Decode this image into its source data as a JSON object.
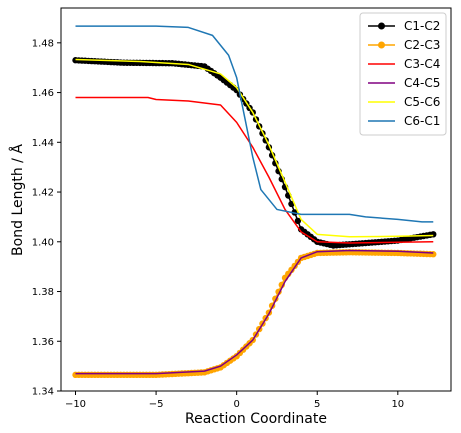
{
  "chart_data": {
    "type": "line",
    "xlabel": "Reaction Coordinate",
    "ylabel": "Bond Length / Å",
    "xlim": [
      -10.9,
      13.3
    ],
    "ylim": [
      1.34,
      1.494
    ],
    "x_ticks": [
      -10,
      -5,
      0,
      5,
      10
    ],
    "x_tick_labels": [
      "−10",
      "−5",
      "0",
      "5",
      "10"
    ],
    "y_ticks": [
      1.34,
      1.36,
      1.38,
      1.4,
      1.42,
      1.44,
      1.46,
      1.48
    ],
    "y_tick_labels": [
      "1.34",
      "1.36",
      "1.38",
      "1.40",
      "1.42",
      "1.44",
      "1.46",
      "1.48"
    ],
    "grid": false,
    "legend_position": "top-right",
    "series": [
      {
        "name": "C1-C2",
        "color": "#000000",
        "marker": "circle",
        "points": [
          [
            -10,
            1.473
          ],
          [
            -7,
            1.472
          ],
          [
            -4,
            1.4718
          ],
          [
            -2,
            1.4705
          ],
          [
            -1,
            1.466
          ],
          [
            0,
            1.461
          ],
          [
            1,
            1.452
          ],
          [
            2,
            1.438
          ],
          [
            3,
            1.422
          ],
          [
            4,
            1.405
          ],
          [
            5,
            1.4
          ],
          [
            6,
            1.3985
          ],
          [
            8,
            1.3995
          ],
          [
            10,
            1.4005
          ],
          [
            12.2,
            1.403
          ]
        ]
      },
      {
        "name": "C2-C3",
        "color": "#FFA500",
        "marker": "circle",
        "points": [
          [
            -10,
            1.3465
          ],
          [
            -5,
            1.3465
          ],
          [
            -2,
            1.3475
          ],
          [
            -1,
            1.3495
          ],
          [
            0,
            1.354
          ],
          [
            1,
            1.3605
          ],
          [
            2,
            1.3715
          ],
          [
            3,
            1.3855
          ],
          [
            4,
            1.3935
          ],
          [
            5,
            1.3955
          ],
          [
            7,
            1.3958
          ],
          [
            10,
            1.3955
          ],
          [
            12.2,
            1.395
          ]
        ]
      },
      {
        "name": "C3-C4",
        "color": "#FF0000",
        "marker": "none",
        "points": [
          [
            -10,
            1.458
          ],
          [
            -5.5,
            1.458
          ],
          [
            -5,
            1.4572
          ],
          [
            -3,
            1.4566
          ],
          [
            -1,
            1.455
          ],
          [
            0,
            1.448
          ],
          [
            1,
            1.438
          ],
          [
            2,
            1.426
          ],
          [
            3,
            1.413
          ],
          [
            4,
            1.404
          ],
          [
            5,
            1.4
          ],
          [
            7,
            1.3995
          ],
          [
            10,
            1.3998
          ],
          [
            12.2,
            1.4
          ]
        ]
      },
      {
        "name": "C4-C5",
        "color": "#800080",
        "marker": "none",
        "points": [
          [
            -10,
            1.347
          ],
          [
            -5,
            1.347
          ],
          [
            -2,
            1.348
          ],
          [
            -1,
            1.35
          ],
          [
            0,
            1.3545
          ],
          [
            1,
            1.3605
          ],
          [
            2,
            1.371
          ],
          [
            3,
            1.384
          ],
          [
            4,
            1.3935
          ],
          [
            5,
            1.396
          ],
          [
            7,
            1.3965
          ],
          [
            10,
            1.3962
          ],
          [
            12.2,
            1.3955
          ]
        ]
      },
      {
        "name": "C5-C6",
        "color": "#FFFF00",
        "marker": "none",
        "points": [
          [
            -10,
            1.4733
          ],
          [
            -6,
            1.4725
          ],
          [
            -3,
            1.4713
          ],
          [
            -1,
            1.4675
          ],
          [
            0,
            1.462
          ],
          [
            1,
            1.452
          ],
          [
            2,
            1.439
          ],
          [
            3,
            1.424
          ],
          [
            4,
            1.409
          ],
          [
            5,
            1.403
          ],
          [
            7,
            1.402
          ],
          [
            10,
            1.4022
          ],
          [
            12.2,
            1.4025
          ]
        ]
      },
      {
        "name": "C6-C1",
        "color": "#1F77B4",
        "marker": "none",
        "points": [
          [
            -10,
            1.4867
          ],
          [
            -5,
            1.4867
          ],
          [
            -3,
            1.4862
          ],
          [
            -1.5,
            1.483
          ],
          [
            -0.5,
            1.475
          ],
          [
            0,
            1.466
          ],
          [
            0.5,
            1.45
          ],
          [
            1,
            1.434
          ],
          [
            1.5,
            1.421
          ],
          [
            2.5,
            1.413
          ],
          [
            4,
            1.411
          ],
          [
            7,
            1.411
          ],
          [
            8,
            1.41
          ],
          [
            10,
            1.409
          ],
          [
            11.5,
            1.408
          ],
          [
            12.2,
            1.408
          ]
        ]
      }
    ]
  }
}
